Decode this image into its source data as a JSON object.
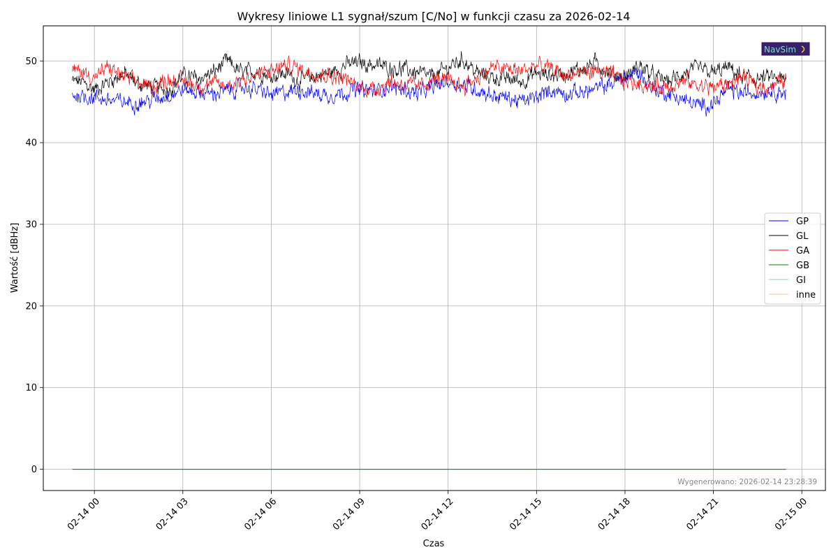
{
  "chart_data": {
    "type": "line",
    "title": "Wykresy liniowe L1 sygnał/szum [C/No] w funkcji czasu za 2026-02-14",
    "xlabel": "Czas",
    "ylabel": "Wartość [dBHz]",
    "x_range": [
      "2026-02-13T22:16",
      "2026-02-15T00:48"
    ],
    "ylim": [
      -2.6,
      54.3
    ],
    "grid": true,
    "legend_position": "center-right",
    "x_ticks": [
      "02-14 00",
      "02-14 03",
      "02-14 06",
      "02-14 09",
      "02-14 12",
      "02-14 15",
      "02-14 18",
      "02-14 21",
      "02-15 00"
    ],
    "y_ticks": [
      0,
      10,
      20,
      30,
      40,
      50
    ],
    "x": [
      "2026-02-13T23:30",
      "2026-02-14T00:00",
      "2026-02-14T00:30",
      "2026-02-14T01:00",
      "2026-02-14T01:30",
      "2026-02-14T02:00",
      "2026-02-14T02:30",
      "2026-02-14T03:00",
      "2026-02-14T03:30",
      "2026-02-14T04:00",
      "2026-02-14T04:30",
      "2026-02-14T05:00",
      "2026-02-14T05:30",
      "2026-02-14T06:00",
      "2026-02-14T06:30",
      "2026-02-14T07:00",
      "2026-02-14T07:30",
      "2026-02-14T08:00",
      "2026-02-14T08:30",
      "2026-02-14T09:00",
      "2026-02-14T09:30",
      "2026-02-14T10:00",
      "2026-02-14T10:30",
      "2026-02-14T11:00",
      "2026-02-14T11:30",
      "2026-02-14T12:00",
      "2026-02-14T12:30",
      "2026-02-14T13:00",
      "2026-02-14T13:30",
      "2026-02-14T14:00",
      "2026-02-14T14:30",
      "2026-02-14T15:00",
      "2026-02-14T15:30",
      "2026-02-14T16:00",
      "2026-02-14T16:30",
      "2026-02-14T17:00",
      "2026-02-14T17:30",
      "2026-02-14T18:00",
      "2026-02-14T18:30",
      "2026-02-14T19:00",
      "2026-02-14T19:30",
      "2026-02-14T20:00",
      "2026-02-14T20:30",
      "2026-02-14T21:00",
      "2026-02-14T21:30",
      "2026-02-14T22:00",
      "2026-02-14T22:30",
      "2026-02-14T23:00",
      "2026-02-14T23:30"
    ],
    "series": [
      {
        "name": "GP",
        "color": "#0000ff",
        "values": [
          45.8,
          45.5,
          45.2,
          45.0,
          44.9,
          45.3,
          45.8,
          46.5,
          46.2,
          46.0,
          46.3,
          46.8,
          46.5,
          45.8,
          46.2,
          46.5,
          46.0,
          45.8,
          46.2,
          46.5,
          46.3,
          46.8,
          46.5,
          46.0,
          46.8,
          47.5,
          47.0,
          46.5,
          45.8,
          45.5,
          45.0,
          45.5,
          46.5,
          46.0,
          46.2,
          46.5,
          47.2,
          48.0,
          48.5,
          46.5,
          46.0,
          45.2,
          44.5,
          44.8,
          46.5,
          46.0,
          46.2,
          46.5,
          46.0
        ]
      },
      {
        "name": "GL",
        "color": "#000000",
        "values": [
          47.5,
          46.5,
          47.5,
          48.5,
          47.2,
          46.8,
          46.5,
          48.2,
          47.8,
          48.5,
          50.0,
          48.5,
          48.8,
          48.2,
          48.5,
          47.5,
          48.2,
          48.5,
          49.5,
          49.8,
          49.5,
          49.2,
          49.0,
          48.5,
          48.0,
          49.2,
          50.2,
          48.5,
          48.0,
          47.8,
          47.5,
          48.5,
          48.2,
          48.5,
          49.0,
          49.8,
          48.5,
          48.0,
          49.5,
          48.0,
          47.5,
          48.5,
          49.0,
          48.5,
          49.2,
          48.0,
          47.8,
          48.0,
          47.5
        ]
      },
      {
        "name": "GA",
        "color": "#ff0000",
        "values": [
          48.8,
          48.0,
          49.2,
          48.0,
          47.2,
          46.8,
          47.8,
          47.5,
          47.0,
          47.2,
          47.0,
          47.8,
          48.2,
          48.8,
          49.5,
          49.0,
          48.5,
          48.2,
          47.8,
          46.8,
          46.5,
          47.5,
          47.2,
          46.8,
          47.8,
          47.5,
          47.0,
          48.0,
          49.2,
          49.0,
          48.8,
          49.5,
          49.0,
          48.2,
          48.5,
          48.8,
          48.2,
          47.5,
          47.2,
          46.8,
          47.0,
          47.5,
          47.0,
          46.8,
          47.2,
          48.0,
          46.8,
          47.0,
          47.8
        ]
      },
      {
        "name": "GB",
        "color": "#008000",
        "values": [
          0,
          0,
          0,
          0,
          0,
          0,
          0,
          0,
          0,
          0,
          0,
          0,
          0,
          0,
          0,
          0,
          0,
          0,
          0,
          0,
          0,
          0,
          0,
          0,
          0,
          0,
          0,
          0,
          0,
          0,
          0,
          0,
          0,
          0,
          0,
          0,
          0,
          0,
          0,
          0,
          0,
          0,
          0,
          0,
          0,
          0,
          0,
          0,
          0
        ]
      },
      {
        "name": "GI",
        "color": "#a6c8ea",
        "values": [
          0,
          0,
          0,
          0,
          0,
          0,
          0,
          0,
          0,
          0,
          0,
          0,
          0,
          0,
          0,
          0,
          0,
          0,
          0,
          0,
          0,
          0,
          0,
          0,
          0,
          0,
          0,
          0,
          0,
          0,
          0,
          0,
          0,
          0,
          0,
          0,
          0,
          0,
          0,
          0,
          0,
          0,
          0,
          0,
          0,
          0,
          0,
          0,
          0
        ]
      },
      {
        "name": "inne",
        "color": "#f5c690",
        "values": [
          0,
          0,
          0,
          0,
          0,
          0,
          0,
          0,
          0,
          0,
          0,
          0,
          0,
          0,
          0,
          0,
          0,
          0,
          0,
          0,
          0,
          0,
          0,
          0,
          0,
          0,
          0,
          0,
          0,
          0,
          0,
          0,
          0,
          0,
          0,
          0,
          0,
          0,
          0,
          0,
          0,
          0,
          0,
          0,
          0,
          0,
          0,
          0,
          0
        ]
      }
    ],
    "annotations": [
      "Wygenerowano: 2026-02-14 23:28:39"
    ]
  },
  "logo": {
    "text": "NavSim"
  }
}
